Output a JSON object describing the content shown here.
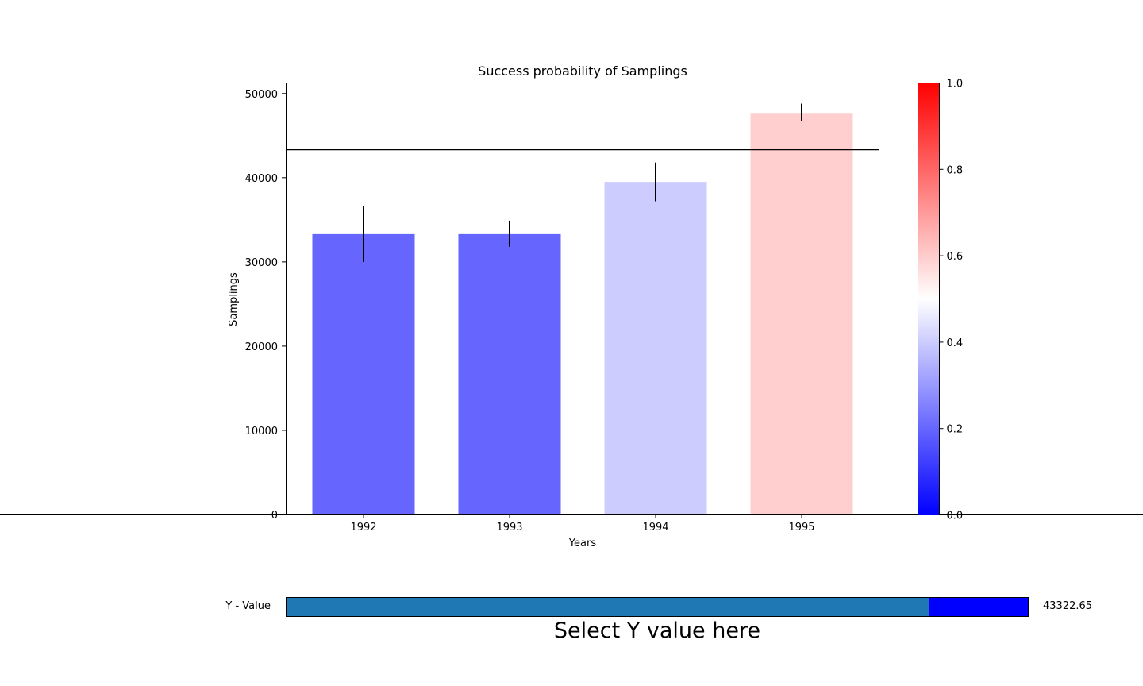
{
  "chart_data": {
    "type": "bar",
    "title": "Success probability of Samplings",
    "xlabel": "Years",
    "ylabel": "Samplings",
    "categories": [
      "1992",
      "1993",
      "1994",
      "1995"
    ],
    "values": [
      33300,
      33300,
      39500,
      47700
    ],
    "error_low": [
      30000,
      31800,
      37200,
      46700
    ],
    "error_high": [
      36600,
      34900,
      41800,
      48800
    ],
    "bar_colors": [
      "#6666ff",
      "#6666ff",
      "#ccccff",
      "#ffcfcf"
    ],
    "ylim": [
      0,
      51300
    ],
    "yticks": [
      "0",
      "10000",
      "20000",
      "30000",
      "40000",
      "50000"
    ],
    "reference_line_y": 43322.65,
    "colorbar": {
      "ticks": [
        "0.0",
        "0.2",
        "0.4",
        "0.6",
        "0.8",
        "1.0"
      ],
      "colors": [
        "#0000ff",
        "#ffffff",
        "#ff0000"
      ]
    },
    "grid": false
  },
  "slider": {
    "label": "Y - Value",
    "value_text": "43322.65",
    "fraction": 0.8666,
    "caption": "Select Y value here",
    "fill_color": "#1f77b4",
    "track_color": "#0000ff"
  }
}
